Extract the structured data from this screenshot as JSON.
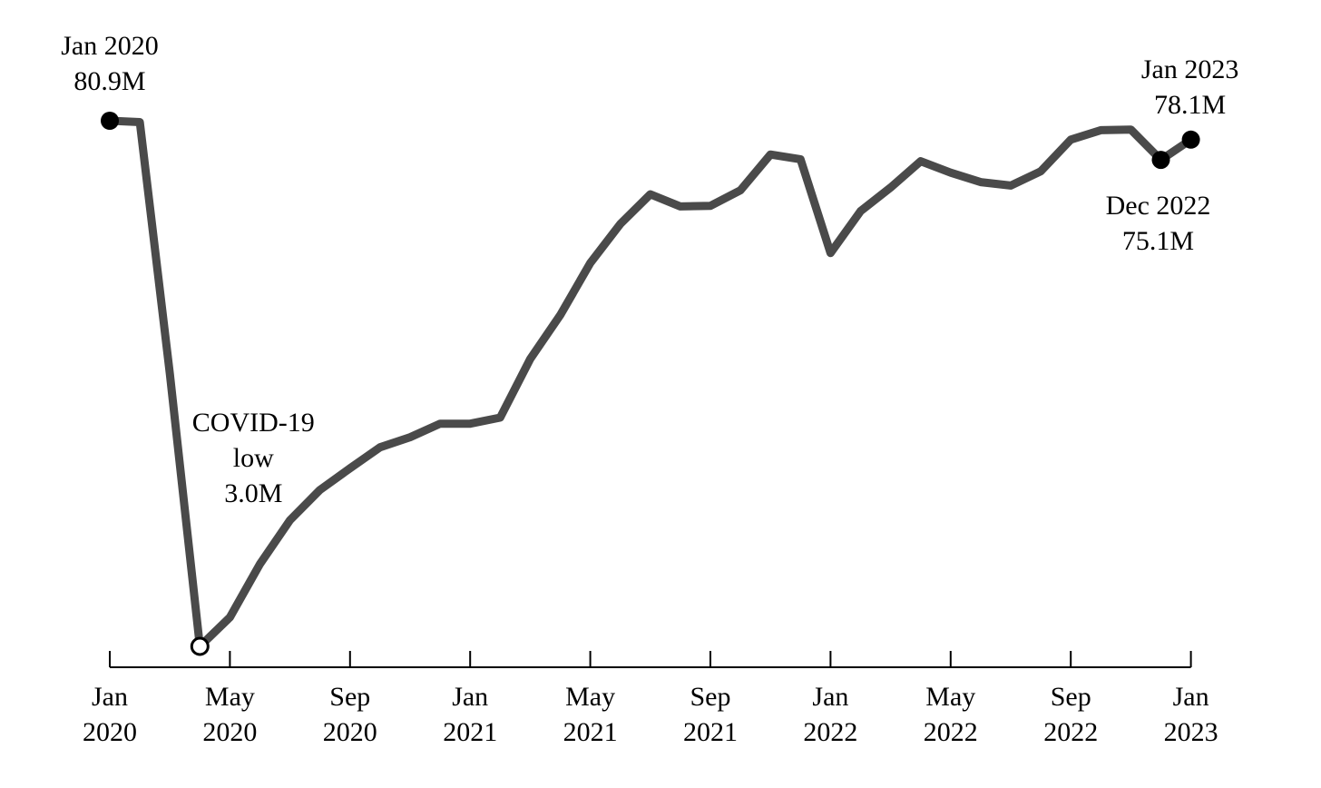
{
  "chart_data": {
    "type": "line",
    "title": "",
    "xlabel": "",
    "ylabel": "",
    "x_ticks": [
      {
        "date": "2020-01",
        "line1": "Jan",
        "line2": "2020"
      },
      {
        "date": "2020-05",
        "line1": "May",
        "line2": "2020"
      },
      {
        "date": "2020-09",
        "line1": "Sep",
        "line2": "2020"
      },
      {
        "date": "2021-01",
        "line1": "Jan",
        "line2": "2021"
      },
      {
        "date": "2021-05",
        "line1": "May",
        "line2": "2021"
      },
      {
        "date": "2021-09",
        "line1": "Sep",
        "line2": "2021"
      },
      {
        "date": "2022-01",
        "line1": "Jan",
        "line2": "2022"
      },
      {
        "date": "2022-05",
        "line1": "May",
        "line2": "2022"
      },
      {
        "date": "2022-09",
        "line1": "Sep",
        "line2": "2022"
      },
      {
        "date": "2023-01",
        "line1": "Jan",
        "line2": "2023"
      }
    ],
    "grid": false,
    "y_axis_visible": false,
    "line_color": "#4a4a4a",
    "series": [
      {
        "x": [
          "2020-01",
          "2020-02",
          "2020-03",
          "2020-04",
          "2020-05",
          "2020-06",
          "2020-07",
          "2020-08",
          "2020-09",
          "2020-10",
          "2020-11",
          "2020-12",
          "2021-01",
          "2021-02",
          "2021-03",
          "2021-04",
          "2021-05",
          "2021-06",
          "2021-07",
          "2021-08",
          "2021-09",
          "2021-10",
          "2021-11",
          "2021-12",
          "2022-01",
          "2022-02",
          "2022-03",
          "2022-04",
          "2022-05",
          "2022-06",
          "2022-07",
          "2022-08",
          "2022-09",
          "2022-10",
          "2022-11",
          "2022-12",
          "2023-01"
        ],
        "values": [
          80.9,
          80.7,
          43.4,
          3.0,
          7.3,
          15.2,
          21.7,
          26.2,
          29.4,
          32.5,
          34.0,
          36.0,
          36.0,
          36.9,
          45.6,
          52.1,
          59.8,
          65.6,
          70.0,
          68.2,
          68.3,
          70.6,
          75.9,
          75.2,
          61.3,
          67.5,
          71.0,
          74.9,
          73.2,
          71.8,
          71.3,
          73.4,
          78.1,
          79.5,
          79.6,
          75.1,
          78.1
        ]
      }
    ],
    "annotations": [
      {
        "date": "2020-01",
        "value": 80.9,
        "label_line1": "Jan 2020",
        "label_line2": "80.9M",
        "marker": "filled"
      },
      {
        "date": "2020-04",
        "value": 3.0,
        "label_line1": "COVID-19",
        "label_line2": "low",
        "label_line3": "3.0M",
        "marker": "open"
      },
      {
        "date": "2022-12",
        "value": 75.1,
        "label_line1": "Dec 2022",
        "label_line2": "75.1M",
        "marker": "filled"
      },
      {
        "date": "2023-01",
        "value": 78.1,
        "label_line1": "Jan 2023",
        "label_line2": "78.1M",
        "marker": "filled"
      }
    ]
  }
}
